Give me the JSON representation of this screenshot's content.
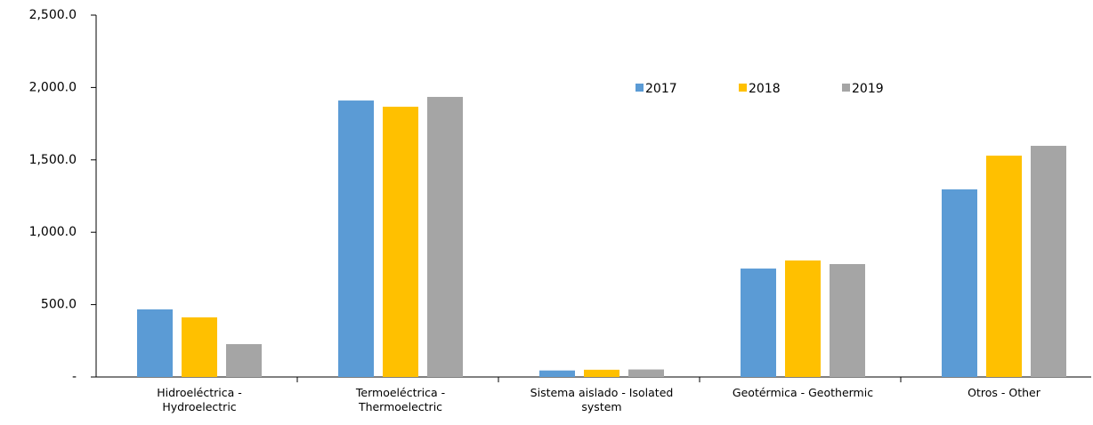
{
  "chart_data": {
    "type": "bar",
    "categories": [
      "Hidroeléctrica - Hydroelectric",
      "Termoeléctrica - Thermoelectric",
      "Sistema aislado - Isolated system",
      "Geotérmica - Geothermic",
      "Otros - Other"
    ],
    "series": [
      {
        "name": "2017",
        "color": "#5b9bd5",
        "values": [
          467,
          1910,
          45,
          749,
          1296
        ]
      },
      {
        "name": "2018",
        "color": "#ffc000",
        "values": [
          412,
          1867,
          50,
          805,
          1529
        ]
      },
      {
        "name": "2019",
        "color": "#a5a5a5",
        "values": [
          227,
          1935,
          52,
          780,
          1597
        ]
      }
    ],
    "ylim": [
      0,
      2500
    ],
    "yticks": [
      {
        "value": 0,
        "label": "-"
      },
      {
        "value": 500,
        "label": "500.0"
      },
      {
        "value": 1000,
        "label": "1,000.0"
      },
      {
        "value": 1500,
        "label": "1,500.0"
      },
      {
        "value": 2000,
        "label": "2,000.0"
      },
      {
        "value": 2500,
        "label": "2,500.0"
      }
    ],
    "grid": false,
    "legend": "top-center"
  }
}
